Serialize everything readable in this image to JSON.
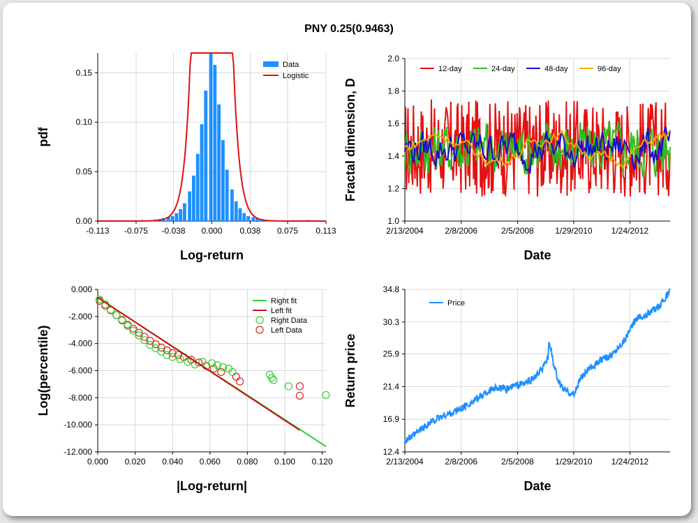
{
  "title": "PNY 0.25(0.9463)",
  "chart_data": [
    {
      "type": "bar",
      "xlabel": "Log-return",
      "ylabel": "pdf",
      "xlim": [
        -0.113,
        0.113
      ],
      "ylim": [
        0,
        0.17
      ],
      "xticks": [
        "-0.113",
        "-0.075",
        "-0.038",
        "0.000",
        "0.038",
        "0.075",
        "0.113"
      ],
      "yticks": [
        "0.00",
        "0.05",
        "0.10",
        "0.15"
      ],
      "grid": true,
      "legend": "top-right",
      "series": [
        {
          "name": "Data",
          "kind": "bar",
          "color": "#1e90ff",
          "x": [
            -0.111,
            -0.106,
            -0.102,
            -0.098,
            -0.094,
            -0.09,
            -0.085,
            -0.081,
            -0.077,
            -0.073,
            -0.069,
            -0.064,
            -0.06,
            -0.056,
            -0.052,
            -0.048,
            -0.043,
            -0.039,
            -0.035,
            -0.031,
            -0.027,
            -0.022,
            -0.018,
            -0.014,
            -0.01,
            -0.006,
            -0.001,
            0.003,
            0.007,
            0.011,
            0.015,
            0.02,
            0.024,
            0.028,
            0.032,
            0.036,
            0.041,
            0.045,
            0.049,
            0.053,
            0.057,
            0.062,
            0.066,
            0.07,
            0.074,
            0.078,
            0.083,
            0.087,
            0.091,
            0.095,
            0.099,
            0.104,
            0.108
          ],
          "values": [
            0.0005,
            0,
            0,
            0,
            0,
            0,
            0,
            0,
            0.0005,
            0.0005,
            0.001,
            0,
            0.001,
            0.0015,
            0.002,
            0.003,
            0.004,
            0.005,
            0.008,
            0.012,
            0.018,
            0.03,
            0.046,
            0.068,
            0.098,
            0.132,
            0.17,
            0.158,
            0.118,
            0.082,
            0.052,
            0.032,
            0.02,
            0.013,
            0.008,
            0.005,
            0.004,
            0.003,
            0.002,
            0.0015,
            0.001,
            0.001,
            0.0005,
            0.0005,
            0.0005,
            0,
            0,
            0,
            0,
            0.001,
            0,
            0,
            0
          ]
        },
        {
          "name": "Logistic",
          "kind": "line",
          "color": "#dd1111"
        }
      ]
    },
    {
      "type": "line",
      "xlabel": "Date",
      "ylabel": "Fractal dimension, D",
      "xlim": [
        "2/13/2004",
        "6/30/2013"
      ],
      "ylim": [
        1.0,
        2.0
      ],
      "xticks": [
        "2/13/2004",
        "2/8/2006",
        "2/5/2008",
        "1/29/2010",
        "1/24/2012"
      ],
      "yticks": [
        "1.0",
        "1.2",
        "1.4",
        "1.6",
        "1.8",
        "2.0"
      ],
      "grid": true,
      "legend": "top",
      "series": [
        {
          "name": "12-day",
          "color": "#e31212"
        },
        {
          "name": "24-day",
          "color": "#33bb22"
        },
        {
          "name": "48-day",
          "color": "#1010cc"
        },
        {
          "name": "96-day",
          "color": "#ffa500"
        }
      ]
    },
    {
      "type": "scatter",
      "xlabel": "|Log-return|",
      "ylabel": "Log(percentile)",
      "xlim": [
        0.0,
        0.122
      ],
      "ylim": [
        -12.0,
        0.0
      ],
      "xticks": [
        "0.000",
        "0.020",
        "0.040",
        "0.060",
        "0.080",
        "0.100",
        "0.120"
      ],
      "yticks": [
        "0.000",
        "-2.000",
        "-4.000",
        "-6.000",
        "-8.000",
        "-10.000",
        "-12.000"
      ],
      "grid": true,
      "legend": "top-right",
      "series": [
        {
          "name": "Right fit",
          "kind": "line",
          "color": "#33cc33",
          "x": [
            0.0,
            0.122
          ],
          "y": [
            -0.6,
            -11.6
          ]
        },
        {
          "name": "Left fit",
          "kind": "line",
          "color": "#cc1111",
          "x": [
            0.0,
            0.108
          ],
          "y": [
            -0.6,
            -10.4
          ]
        },
        {
          "name": "Right Data",
          "kind": "scatter",
          "color": "#33cc33",
          "x": [
            0.001,
            0.004,
            0.007,
            0.01,
            0.013,
            0.016,
            0.019,
            0.022,
            0.025,
            0.028,
            0.031,
            0.034,
            0.037,
            0.04,
            0.044,
            0.048,
            0.052,
            0.056,
            0.061,
            0.064,
            0.067,
            0.07,
            0.072,
            0.092,
            0.093,
            0.094,
            0.102,
            0.122
          ],
          "y": [
            -0.75,
            -1.1,
            -1.5,
            -1.9,
            -2.3,
            -2.7,
            -3.05,
            -3.4,
            -3.75,
            -4.1,
            -4.35,
            -4.6,
            -4.85,
            -5.0,
            -5.15,
            -5.35,
            -5.55,
            -5.35,
            -5.45,
            -5.6,
            -5.75,
            -5.85,
            -6.1,
            -6.3,
            -6.55,
            -6.7,
            -7.15,
            -7.8
          ]
        },
        {
          "name": "Left Data",
          "kind": "scatter",
          "color": "#dd2222",
          "x": [
            0.001,
            0.004,
            0.007,
            0.01,
            0.013,
            0.016,
            0.019,
            0.022,
            0.025,
            0.028,
            0.031,
            0.034,
            0.037,
            0.04,
            0.043,
            0.046,
            0.05,
            0.054,
            0.058,
            0.062,
            0.066,
            0.074,
            0.076,
            0.108,
            0.108
          ],
          "y": [
            -0.85,
            -1.2,
            -1.55,
            -1.9,
            -2.25,
            -2.6,
            -2.9,
            -3.2,
            -3.5,
            -3.8,
            -4.05,
            -4.3,
            -4.5,
            -4.7,
            -4.85,
            -5.0,
            -5.2,
            -5.4,
            -5.65,
            -5.85,
            -6.1,
            -6.45,
            -6.8,
            -7.15,
            -7.85
          ]
        }
      ]
    },
    {
      "type": "line",
      "xlabel": "Date",
      "ylabel": "Return price",
      "xlim": [
        "2/13/2004",
        "6/30/2013"
      ],
      "ylim": [
        12.4,
        34.8
      ],
      "xticks": [
        "2/13/2004",
        "2/8/2006",
        "2/5/2008",
        "1/29/2010",
        "1/24/2012"
      ],
      "yticks": [
        "12.4",
        "16.9",
        "21.4",
        "25.9",
        "30.3",
        "34.8"
      ],
      "grid": true,
      "legend": "top-left",
      "series": [
        {
          "name": "Price",
          "color": "#1e90ff",
          "t": [
            0.0,
            0.03,
            0.06,
            0.1,
            0.14,
            0.18,
            0.22,
            0.26,
            0.3,
            0.34,
            0.38,
            0.42,
            0.46,
            0.5,
            0.52,
            0.54,
            0.545,
            0.56,
            0.58,
            0.6,
            0.62,
            0.64,
            0.66,
            0.7,
            0.74,
            0.78,
            0.82,
            0.84,
            0.86,
            0.88,
            0.9,
            0.93,
            0.96,
            1.0
          ],
          "values": [
            14.0,
            14.5,
            15.5,
            16.5,
            17.3,
            17.8,
            18.5,
            19.4,
            20.4,
            21.3,
            21.0,
            21.6,
            21.9,
            23.0,
            23.8,
            25.6,
            27.8,
            24.5,
            22.0,
            21.0,
            20.6,
            20.3,
            22.5,
            24.0,
            25.0,
            25.8,
            27.5,
            28.5,
            30.0,
            31.2,
            31.0,
            31.8,
            32.5,
            34.5
          ]
        }
      ]
    }
  ]
}
